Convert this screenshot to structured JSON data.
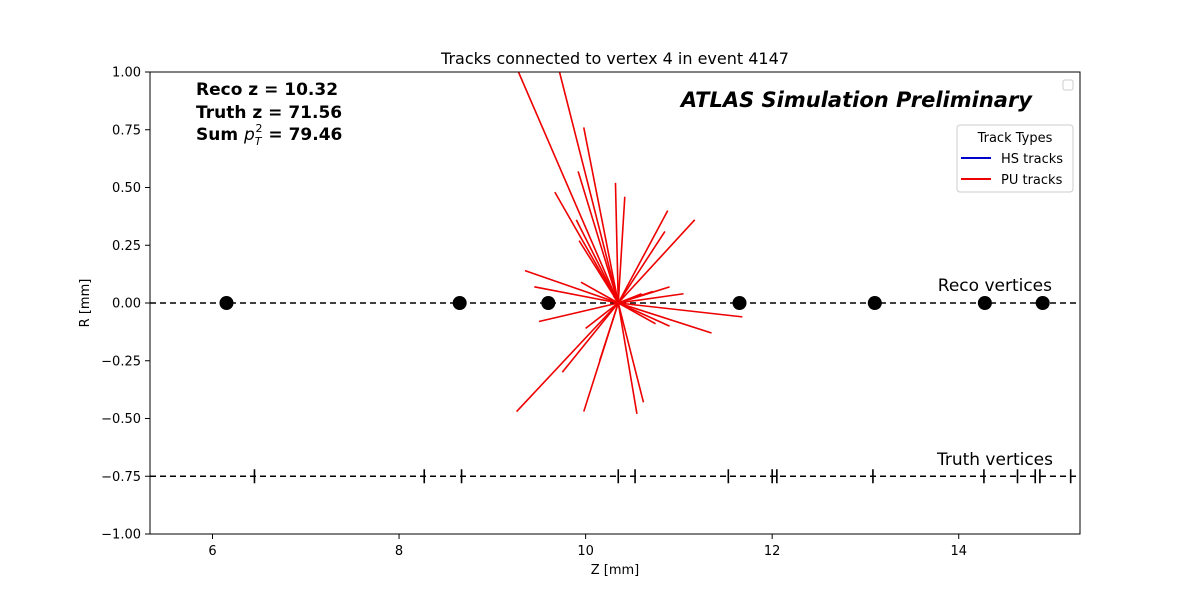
{
  "chart_data": {
    "type": "scatter",
    "title": "Tracks connected to vertex 4 in event 4147",
    "xlabel": "Z [mm]",
    "ylabel": "R [mm]",
    "xlim": [
      5.33,
      15.3
    ],
    "ylim": [
      -1.0,
      1.0
    ],
    "xticks": [
      "6",
      "8",
      "10",
      "12",
      "14"
    ],
    "yticks": [
      "−1.00",
      "−0.75",
      "−0.50",
      "−0.25",
      "0.00",
      "0.25",
      "0.50",
      "0.75",
      "1.00"
    ],
    "grid": false,
    "stats": {
      "reco_z": "Reco z = 10.32",
      "truth_z": "Truth z = 71.56",
      "sum_pt2_prefix": "Sum ",
      "sum_pt2_value": " = 79.46"
    },
    "watermark": "ATLAS Simulation Preliminary",
    "legend": {
      "title": "Track Types",
      "placement": "top-right",
      "entries": [
        {
          "label": "HS tracks",
          "color": "#0000cc"
        },
        {
          "label": "PU tracks",
          "color": "#ee0000"
        }
      ]
    },
    "reco_label": "Reco vertices",
    "truth_label": "Truth vertices",
    "reco_vertices": {
      "r": 0.0,
      "z": [
        6.15,
        8.65,
        9.6,
        11.65,
        13.1,
        14.28,
        14.9
      ]
    },
    "truth_vertices": {
      "r": -0.75,
      "z": [
        6.45,
        8.27,
        8.67,
        10.35,
        10.53,
        11.53,
        12.0,
        12.05,
        13.08,
        14.27,
        14.63,
        14.82,
        14.87,
        15.2
      ]
    },
    "pu_tracks": [
      {
        "z": [
          9.28,
          10.35
        ],
        "r": [
          1.0,
          0.0
        ]
      },
      {
        "z": [
          9.72,
          10.35
        ],
        "r": [
          1.0,
          0.0
        ]
      },
      {
        "z": [
          9.98,
          10.35
        ],
        "r": [
          0.76,
          0.0
        ]
      },
      {
        "z": [
          9.92,
          10.35
        ],
        "r": [
          0.57,
          0.0
        ]
      },
      {
        "z": [
          9.67,
          10.35
        ],
        "r": [
          0.48,
          0.0
        ]
      },
      {
        "z": [
          10.32,
          10.35
        ],
        "r": [
          0.52,
          0.0
        ]
      },
      {
        "z": [
          10.42,
          10.35
        ],
        "r": [
          0.46,
          0.0
        ]
      },
      {
        "z": [
          10.88,
          10.35
        ],
        "r": [
          0.4,
          0.0
        ]
      },
      {
        "z": [
          11.17,
          10.35
        ],
        "r": [
          0.36,
          0.0
        ]
      },
      {
        "z": [
          10.85,
          10.35
        ],
        "r": [
          0.31,
          0.0
        ]
      },
      {
        "z": [
          9.9,
          10.35
        ],
        "r": [
          0.36,
          0.0
        ]
      },
      {
        "z": [
          9.93,
          10.35
        ],
        "r": [
          0.27,
          0.0
        ]
      },
      {
        "z": [
          9.35,
          10.35
        ],
        "r": [
          0.14,
          0.0
        ]
      },
      {
        "z": [
          9.45,
          10.35
        ],
        "r": [
          0.07,
          0.0
        ]
      },
      {
        "z": [
          10.9,
          10.35
        ],
        "r": [
          0.07,
          0.0
        ]
      },
      {
        "z": [
          11.05,
          10.35
        ],
        "r": [
          0.04,
          0.0
        ]
      },
      {
        "z": [
          9.95,
          10.35
        ],
        "r": [
          0.09,
          0.0
        ]
      },
      {
        "z": [
          10.72,
          10.35
        ],
        "r": [
          0.05,
          0.0
        ]
      },
      {
        "z": [
          11.68,
          10.35
        ],
        "r": [
          -0.06,
          0.0
        ]
      },
      {
        "z": [
          11.35,
          10.35
        ],
        "r": [
          -0.13,
          0.0
        ]
      },
      {
        "z": [
          10.9,
          10.35
        ],
        "r": [
          -0.1,
          0.0
        ]
      },
      {
        "z": [
          10.75,
          10.35
        ],
        "r": [
          -0.09,
          0.0
        ]
      },
      {
        "z": [
          9.5,
          10.35
        ],
        "r": [
          -0.08,
          0.0
        ]
      },
      {
        "z": [
          10.0,
          10.35
        ],
        "r": [
          -0.11,
          0.0
        ]
      },
      {
        "z": [
          9.26,
          10.35
        ],
        "r": [
          -0.47,
          0.0
        ]
      },
      {
        "z": [
          9.75,
          10.35
        ],
        "r": [
          -0.3,
          0.0
        ]
      },
      {
        "z": [
          10.15,
          10.35
        ],
        "r": [
          -0.25,
          0.0
        ]
      },
      {
        "z": [
          9.98,
          10.35
        ],
        "r": [
          -0.47,
          0.0
        ]
      },
      {
        "z": [
          10.55,
          10.35
        ],
        "r": [
          -0.48,
          0.0
        ]
      },
      {
        "z": [
          10.62,
          10.35
        ],
        "r": [
          -0.43,
          0.0
        ]
      },
      {
        "z": [
          10.3,
          10.35
        ],
        "r": [
          0.03,
          0.0
        ]
      },
      {
        "z": [
          10.6,
          10.35
        ],
        "r": [
          0.04,
          0.0
        ]
      }
    ],
    "colors": {
      "pu": "#ee0000",
      "hs": "#0000cc",
      "vertex": "#000000"
    }
  }
}
